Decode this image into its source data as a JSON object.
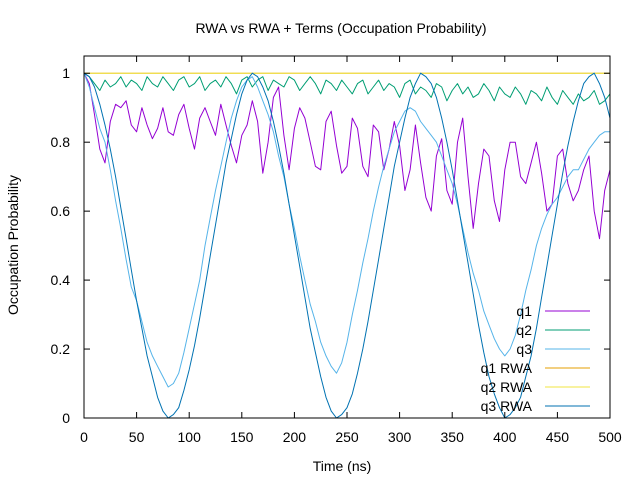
{
  "chart_data": {
    "type": "line",
    "title": "RWA vs RWA + Terms (Occupation Probability)",
    "xlabel": "Time (ns)",
    "ylabel": "Occupation Probability",
    "xlim": [
      0,
      500
    ],
    "ylim": [
      0,
      1.05
    ],
    "xticks": [
      0,
      50,
      100,
      150,
      200,
      250,
      300,
      350,
      400,
      450,
      500
    ],
    "yticks": [
      0,
      0.2,
      0.4,
      0.6,
      0.8,
      1
    ],
    "ytick_labels": [
      "0",
      "0.2",
      "0.4",
      "0.6",
      "0.8",
      "1"
    ],
    "grid": false,
    "legend_position": "bottom-right",
    "series": [
      {
        "name": "q1",
        "color": "#9400d3",
        "x": [
          0,
          5,
          10,
          15,
          20,
          25,
          30,
          35,
          40,
          45,
          50,
          55,
          60,
          65,
          70,
          75,
          80,
          85,
          90,
          95,
          100,
          105,
          110,
          115,
          120,
          125,
          130,
          135,
          140,
          145,
          150,
          155,
          160,
          165,
          170,
          175,
          180,
          185,
          190,
          195,
          200,
          205,
          210,
          215,
          220,
          225,
          230,
          235,
          240,
          245,
          250,
          255,
          260,
          265,
          270,
          275,
          280,
          285,
          290,
          295,
          300,
          305,
          310,
          315,
          320,
          325,
          330,
          335,
          340,
          345,
          350,
          355,
          360,
          365,
          370,
          375,
          380,
          385,
          390,
          395,
          400,
          405,
          410,
          415,
          420,
          425,
          430,
          435,
          440,
          445,
          450,
          455,
          460,
          465,
          470,
          475,
          480,
          485,
          490,
          495,
          500
        ],
        "y": [
          1.0,
          0.97,
          0.88,
          0.78,
          0.74,
          0.86,
          0.91,
          0.9,
          0.92,
          0.85,
          0.83,
          0.9,
          0.85,
          0.81,
          0.84,
          0.9,
          0.83,
          0.82,
          0.88,
          0.91,
          0.84,
          0.78,
          0.87,
          0.9,
          0.86,
          0.82,
          0.91,
          0.85,
          0.79,
          0.74,
          0.82,
          0.85,
          0.92,
          0.86,
          0.71,
          0.8,
          0.93,
          0.96,
          0.82,
          0.72,
          0.84,
          0.9,
          0.87,
          0.8,
          0.73,
          0.72,
          0.86,
          0.89,
          0.79,
          0.71,
          0.73,
          0.87,
          0.84,
          0.73,
          0.7,
          0.85,
          0.83,
          0.72,
          0.78,
          0.86,
          0.79,
          0.66,
          0.72,
          0.85,
          0.74,
          0.64,
          0.6,
          0.76,
          0.81,
          0.66,
          0.62,
          0.8,
          0.87,
          0.7,
          0.55,
          0.68,
          0.78,
          0.76,
          0.63,
          0.57,
          0.72,
          0.8,
          0.8,
          0.7,
          0.68,
          0.74,
          0.8,
          0.71,
          0.6,
          0.62,
          0.76,
          0.78,
          0.68,
          0.63,
          0.66,
          0.72,
          0.76,
          0.6,
          0.52,
          0.66,
          0.72
        ]
      },
      {
        "name": "q2",
        "color": "#009e73",
        "x": [
          0,
          5,
          10,
          15,
          20,
          25,
          30,
          35,
          40,
          45,
          50,
          55,
          60,
          65,
          70,
          75,
          80,
          85,
          90,
          95,
          100,
          105,
          110,
          115,
          120,
          125,
          130,
          135,
          140,
          145,
          150,
          155,
          160,
          165,
          170,
          175,
          180,
          185,
          190,
          195,
          200,
          205,
          210,
          215,
          220,
          225,
          230,
          235,
          240,
          245,
          250,
          255,
          260,
          265,
          270,
          275,
          280,
          285,
          290,
          295,
          300,
          305,
          310,
          315,
          320,
          325,
          330,
          335,
          340,
          345,
          350,
          355,
          360,
          365,
          370,
          375,
          380,
          385,
          390,
          395,
          400,
          405,
          410,
          415,
          420,
          425,
          430,
          435,
          440,
          445,
          450,
          455,
          460,
          465,
          470,
          475,
          480,
          485,
          490,
          495,
          500
        ],
        "y": [
          1.0,
          0.99,
          0.97,
          0.95,
          0.98,
          0.96,
          0.97,
          0.99,
          0.96,
          0.98,
          0.97,
          0.95,
          0.99,
          0.97,
          0.96,
          0.99,
          0.97,
          0.95,
          0.98,
          0.99,
          0.96,
          0.97,
          0.99,
          0.95,
          0.97,
          0.98,
          0.96,
          0.99,
          0.97,
          0.94,
          0.98,
          0.99,
          0.96,
          0.98,
          0.99,
          0.95,
          0.98,
          0.97,
          0.96,
          0.99,
          0.98,
          0.95,
          0.97,
          0.99,
          0.97,
          0.94,
          0.98,
          0.97,
          0.95,
          0.98,
          0.96,
          0.94,
          0.97,
          0.98,
          0.94,
          0.96,
          0.98,
          0.95,
          0.97,
          0.96,
          0.93,
          0.97,
          0.98,
          0.94,
          0.96,
          0.95,
          0.93,
          0.97,
          0.96,
          0.92,
          0.95,
          0.97,
          0.94,
          0.96,
          0.93,
          0.94,
          0.97,
          0.95,
          0.92,
          0.96,
          0.94,
          0.93,
          0.96,
          0.94,
          0.91,
          0.95,
          0.94,
          0.92,
          0.96,
          0.93,
          0.91,
          0.95,
          0.93,
          0.91,
          0.94,
          0.92,
          0.93,
          0.95,
          0.91,
          0.92,
          0.94
        ]
      },
      {
        "name": "q3",
        "color": "#56b4e9",
        "x": [
          0,
          5,
          10,
          15,
          20,
          25,
          30,
          35,
          40,
          45,
          50,
          55,
          60,
          65,
          70,
          75,
          80,
          85,
          90,
          95,
          100,
          105,
          110,
          115,
          120,
          125,
          130,
          135,
          140,
          145,
          150,
          155,
          160,
          165,
          170,
          175,
          180,
          185,
          190,
          195,
          200,
          205,
          210,
          215,
          220,
          225,
          230,
          235,
          240,
          245,
          250,
          255,
          260,
          265,
          270,
          275,
          280,
          285,
          290,
          295,
          300,
          305,
          310,
          315,
          320,
          325,
          330,
          335,
          340,
          345,
          350,
          355,
          360,
          365,
          370,
          375,
          380,
          385,
          390,
          395,
          400,
          405,
          410,
          415,
          420,
          425,
          430,
          435,
          440,
          445,
          450,
          455,
          460,
          465,
          470,
          475,
          480,
          485,
          490,
          495,
          500
        ],
        "y": [
          1.0,
          0.96,
          0.9,
          0.84,
          0.8,
          0.72,
          0.63,
          0.55,
          0.46,
          0.38,
          0.34,
          0.28,
          0.22,
          0.18,
          0.15,
          0.12,
          0.09,
          0.1,
          0.13,
          0.19,
          0.26,
          0.33,
          0.4,
          0.5,
          0.58,
          0.66,
          0.73,
          0.8,
          0.87,
          0.92,
          0.96,
          0.98,
          0.99,
          0.96,
          0.92,
          0.88,
          0.83,
          0.76,
          0.7,
          0.62,
          0.55,
          0.47,
          0.4,
          0.33,
          0.28,
          0.22,
          0.18,
          0.15,
          0.13,
          0.16,
          0.22,
          0.3,
          0.37,
          0.45,
          0.52,
          0.6,
          0.67,
          0.73,
          0.78,
          0.83,
          0.86,
          0.89,
          0.9,
          0.89,
          0.86,
          0.84,
          0.82,
          0.8,
          0.76,
          0.72,
          0.68,
          0.62,
          0.55,
          0.48,
          0.42,
          0.37,
          0.31,
          0.27,
          0.23,
          0.2,
          0.18,
          0.2,
          0.24,
          0.3,
          0.37,
          0.43,
          0.5,
          0.55,
          0.59,
          0.62,
          0.64,
          0.67,
          0.7,
          0.72,
          0.72,
          0.75,
          0.78,
          0.8,
          0.82,
          0.83,
          0.83
        ]
      },
      {
        "name": "q1 RWA",
        "color": "#e69f00",
        "x": [
          0,
          500
        ],
        "y": [
          1.0,
          1.0
        ]
      },
      {
        "name": "q2 RWA",
        "color": "#f0e442",
        "x": [
          0,
          500
        ],
        "y": [
          1.0,
          1.0
        ]
      },
      {
        "name": "q3 RWA",
        "color": "#0072b2",
        "x": [
          0,
          5,
          10,
          15,
          20,
          25,
          30,
          35,
          40,
          45,
          50,
          55,
          60,
          65,
          70,
          75,
          80,
          85,
          90,
          95,
          100,
          105,
          110,
          115,
          120,
          125,
          130,
          135,
          140,
          145,
          150,
          155,
          160,
          165,
          170,
          175,
          180,
          185,
          190,
          195,
          200,
          205,
          210,
          215,
          220,
          225,
          230,
          235,
          240,
          245,
          250,
          255,
          260,
          265,
          270,
          275,
          280,
          285,
          290,
          295,
          300,
          305,
          310,
          315,
          320,
          325,
          330,
          335,
          340,
          345,
          350,
          355,
          360,
          365,
          370,
          375,
          380,
          385,
          390,
          395,
          400,
          405,
          410,
          415,
          420,
          425,
          430,
          435,
          440,
          445,
          450,
          455,
          460,
          465,
          470,
          475,
          480,
          485,
          490,
          495,
          500
        ],
        "y": [
          1.0,
          0.99,
          0.96,
          0.91,
          0.85,
          0.78,
          0.7,
          0.61,
          0.52,
          0.43,
          0.34,
          0.26,
          0.18,
          0.12,
          0.06,
          0.02,
          0.0,
          0.01,
          0.03,
          0.08,
          0.14,
          0.21,
          0.29,
          0.38,
          0.47,
          0.56,
          0.65,
          0.74,
          0.81,
          0.88,
          0.94,
          0.98,
          1.0,
          0.99,
          0.96,
          0.92,
          0.86,
          0.79,
          0.71,
          0.62,
          0.53,
          0.44,
          0.35,
          0.26,
          0.19,
          0.12,
          0.06,
          0.02,
          0.0,
          0.01,
          0.03,
          0.07,
          0.13,
          0.2,
          0.28,
          0.37,
          0.46,
          0.55,
          0.64,
          0.73,
          0.8,
          0.87,
          0.93,
          0.97,
          1.0,
          0.99,
          0.97,
          0.93,
          0.87,
          0.8,
          0.72,
          0.63,
          0.54,
          0.45,
          0.36,
          0.27,
          0.19,
          0.12,
          0.07,
          0.03,
          0.0,
          0.01,
          0.03,
          0.06,
          0.12,
          0.18,
          0.26,
          0.35,
          0.44,
          0.53,
          0.62,
          0.71,
          0.79,
          0.86,
          0.92,
          0.97,
          0.99,
          1.0,
          0.97,
          0.93,
          0.87
        ]
      }
    ]
  }
}
